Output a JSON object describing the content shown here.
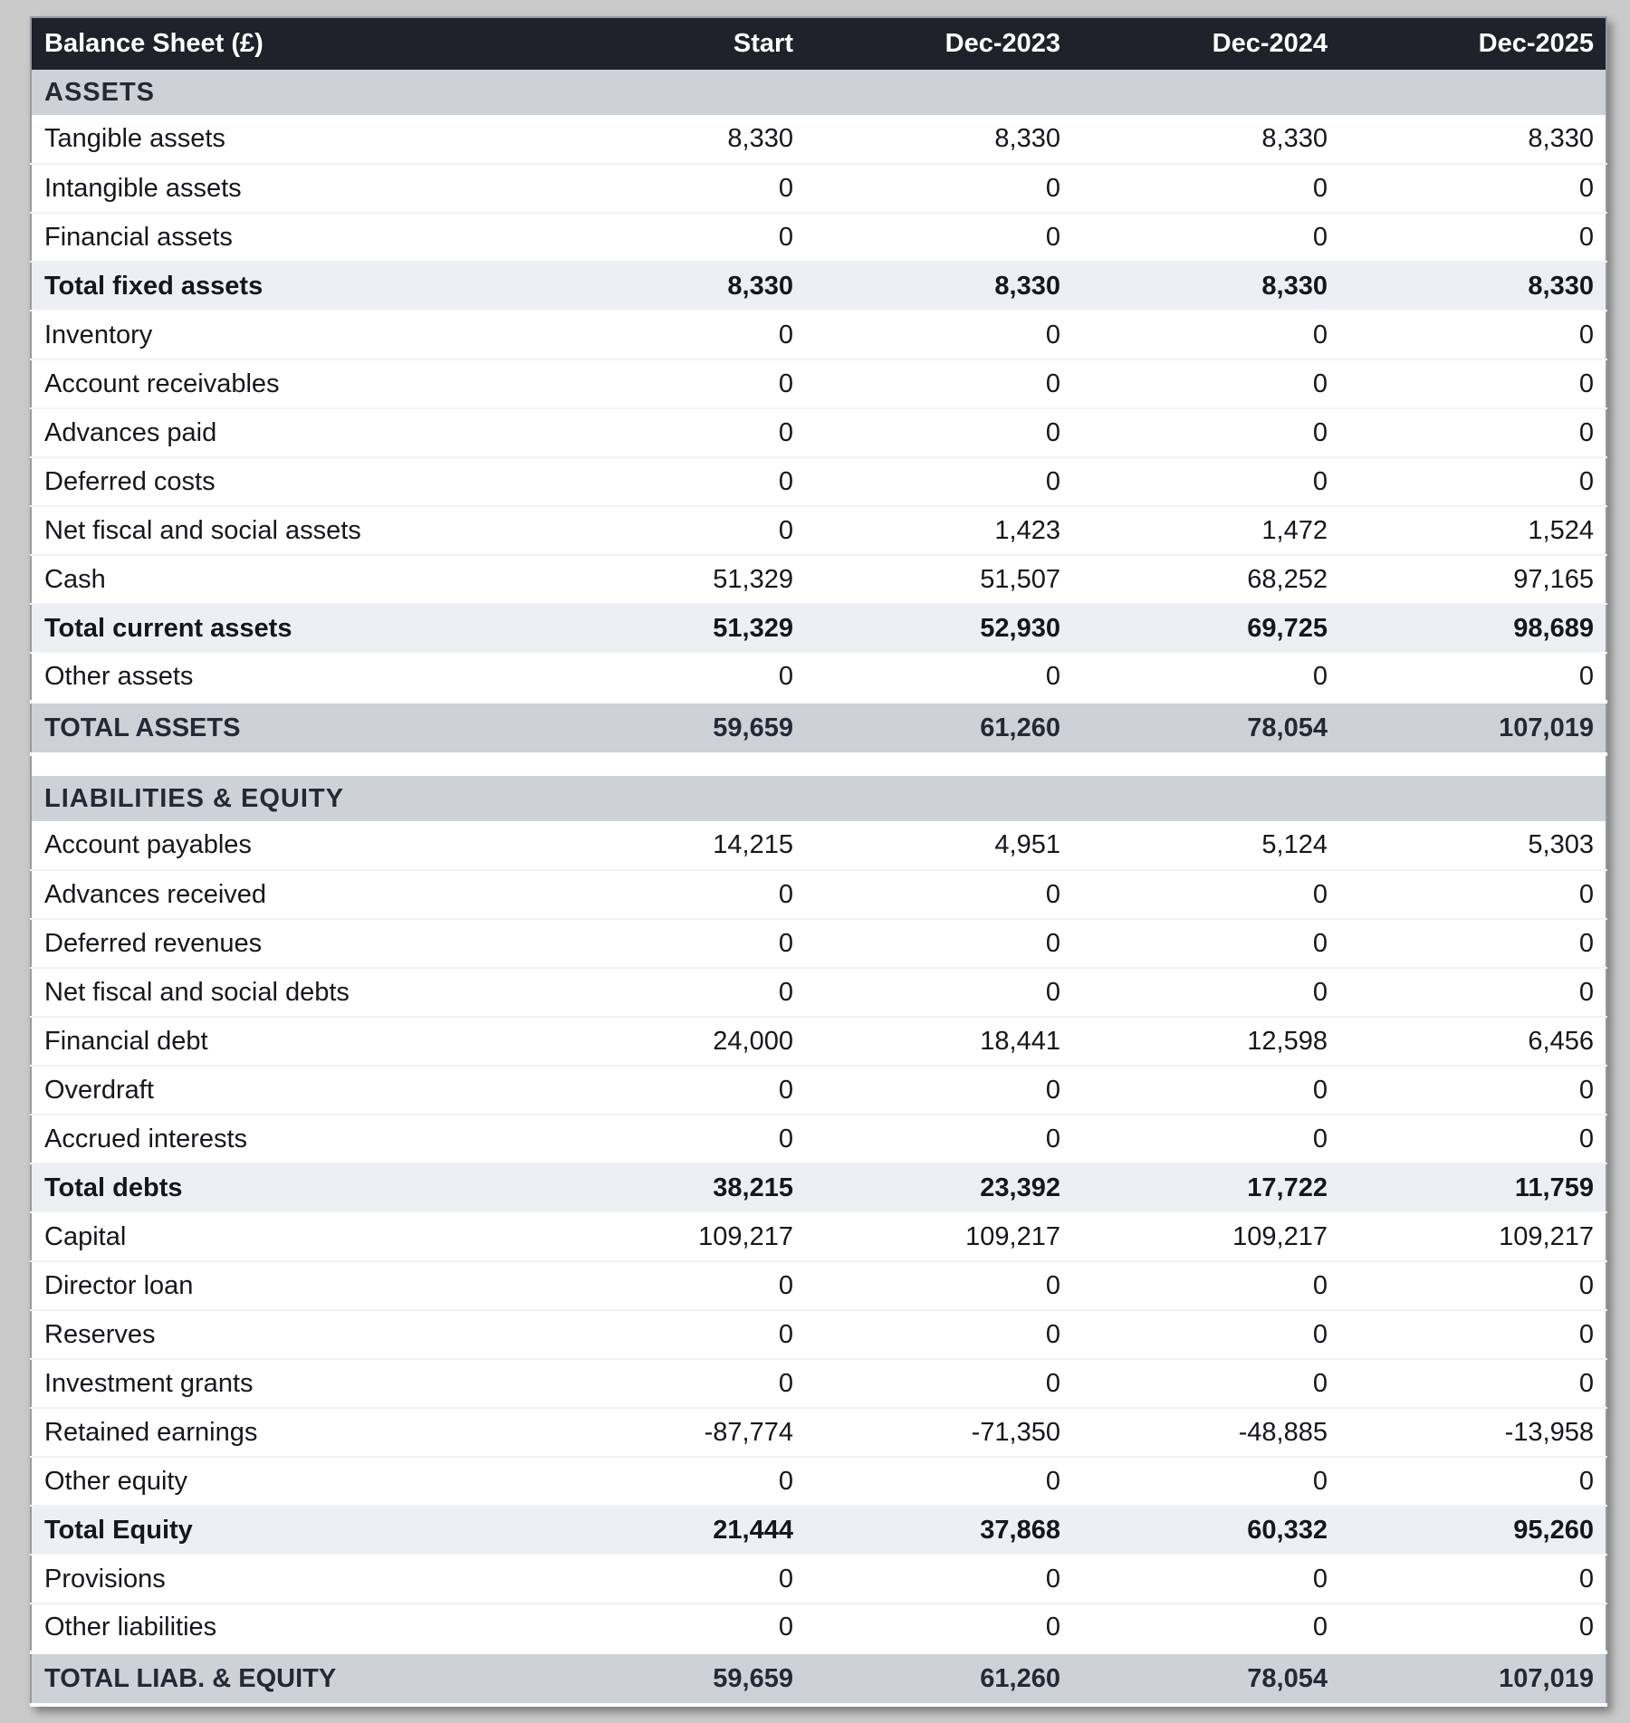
{
  "header": {
    "title": "Balance Sheet (£)",
    "columns": [
      "Start",
      "Dec-2023",
      "Dec-2024",
      "Dec-2025"
    ]
  },
  "sections": [
    {
      "title": "ASSETS",
      "rows": [
        {
          "label": "Tangible assets",
          "style": "normal",
          "values": [
            "8,330",
            "8,330",
            "8,330",
            "8,330"
          ]
        },
        {
          "label": "Intangible assets",
          "style": "normal",
          "values": [
            "0",
            "0",
            "0",
            "0"
          ]
        },
        {
          "label": "Financial assets",
          "style": "normal",
          "values": [
            "0",
            "0",
            "0",
            "0"
          ]
        },
        {
          "label": "Total fixed assets",
          "style": "subtotal",
          "values": [
            "8,330",
            "8,330",
            "8,330",
            "8,330"
          ]
        },
        {
          "label": "Inventory",
          "style": "normal",
          "values": [
            "0",
            "0",
            "0",
            "0"
          ]
        },
        {
          "label": "Account receivables",
          "style": "normal",
          "values": [
            "0",
            "0",
            "0",
            "0"
          ]
        },
        {
          "label": "Advances paid",
          "style": "normal",
          "values": [
            "0",
            "0",
            "0",
            "0"
          ]
        },
        {
          "label": "Deferred costs",
          "style": "normal",
          "values": [
            "0",
            "0",
            "0",
            "0"
          ]
        },
        {
          "label": "Net fiscal and social assets",
          "style": "normal",
          "values": [
            "0",
            "1,423",
            "1,472",
            "1,524"
          ]
        },
        {
          "label": "Cash",
          "style": "normal",
          "values": [
            "51,329",
            "51,507",
            "68,252",
            "97,165"
          ]
        },
        {
          "label": "Total current assets",
          "style": "subtotal",
          "values": [
            "51,329",
            "52,930",
            "69,725",
            "98,689"
          ]
        },
        {
          "label": "Other assets",
          "style": "normal",
          "values": [
            "0",
            "0",
            "0",
            "0"
          ]
        },
        {
          "label": "TOTAL ASSETS",
          "style": "grand",
          "values": [
            "59,659",
            "61,260",
            "78,054",
            "107,019"
          ]
        }
      ]
    },
    {
      "title": "LIABILITIES & EQUITY",
      "rows": [
        {
          "label": "Account payables",
          "style": "normal",
          "values": [
            "14,215",
            "4,951",
            "5,124",
            "5,303"
          ]
        },
        {
          "label": "Advances received",
          "style": "normal",
          "values": [
            "0",
            "0",
            "0",
            "0"
          ]
        },
        {
          "label": "Deferred revenues",
          "style": "normal",
          "values": [
            "0",
            "0",
            "0",
            "0"
          ]
        },
        {
          "label": "Net fiscal and social debts",
          "style": "normal",
          "values": [
            "0",
            "0",
            "0",
            "0"
          ]
        },
        {
          "label": "Financial debt",
          "style": "normal",
          "values": [
            "24,000",
            "18,441",
            "12,598",
            "6,456"
          ]
        },
        {
          "label": "Overdraft",
          "style": "normal",
          "values": [
            "0",
            "0",
            "0",
            "0"
          ]
        },
        {
          "label": "Accrued interests",
          "style": "normal",
          "values": [
            "0",
            "0",
            "0",
            "0"
          ]
        },
        {
          "label": "Total debts",
          "style": "subtotal",
          "values": [
            "38,215",
            "23,392",
            "17,722",
            "11,759"
          ]
        },
        {
          "label": "Capital",
          "style": "normal",
          "values": [
            "109,217",
            "109,217",
            "109,217",
            "109,217"
          ]
        },
        {
          "label": "Director loan",
          "style": "normal",
          "values": [
            "0",
            "0",
            "0",
            "0"
          ]
        },
        {
          "label": "Reserves",
          "style": "normal",
          "values": [
            "0",
            "0",
            "0",
            "0"
          ]
        },
        {
          "label": "Investment grants",
          "style": "normal",
          "values": [
            "0",
            "0",
            "0",
            "0"
          ]
        },
        {
          "label": "Retained earnings",
          "style": "normal",
          "values": [
            "-87,774",
            "-71,350",
            "-48,885",
            "-13,958"
          ]
        },
        {
          "label": "Other equity",
          "style": "normal",
          "values": [
            "0",
            "0",
            "0",
            "0"
          ]
        },
        {
          "label": "Total Equity",
          "style": "subtotal",
          "values": [
            "21,444",
            "37,868",
            "60,332",
            "95,260"
          ]
        },
        {
          "label": "Provisions",
          "style": "normal",
          "values": [
            "0",
            "0",
            "0",
            "0"
          ]
        },
        {
          "label": "Other liabilities",
          "style": "normal",
          "values": [
            "0",
            "0",
            "0",
            "0"
          ]
        },
        {
          "label": "TOTAL LIAB. & EQUITY",
          "style": "grand",
          "values": [
            "59,659",
            "61,260",
            "78,054",
            "107,019"
          ]
        }
      ]
    }
  ],
  "colors": {
    "page_background": "#cacaca",
    "header_background": "#1f222a",
    "header_text": "#ffffff",
    "section_background": "#cdd2d9",
    "section_text": "#242a35",
    "subtotal_background": "#edeff3",
    "row_text": "#15171c"
  }
}
